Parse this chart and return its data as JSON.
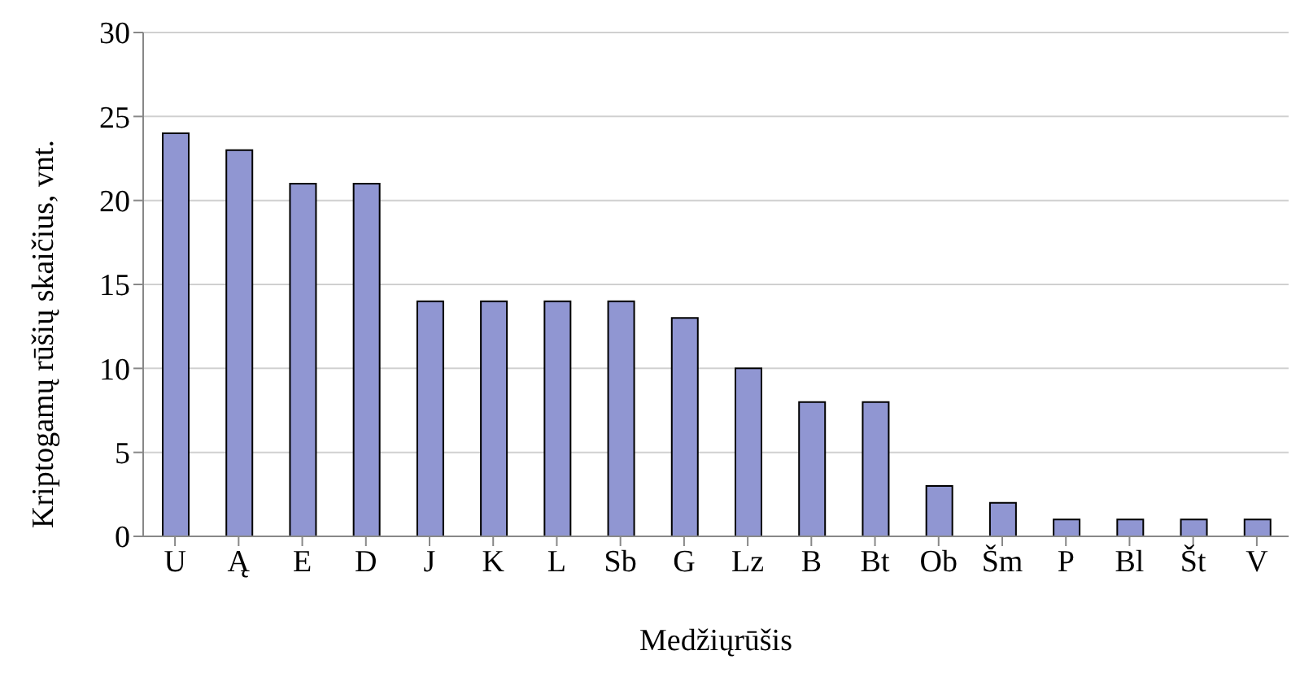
{
  "chart_data": {
    "type": "bar",
    "xlabel": "Medžiųrūšis",
    "ylabel": "Kriptogamų rūšių skaičius, vnt.",
    "categories": [
      "U",
      "Ą",
      "E",
      "D",
      "J",
      "K",
      "L",
      "Sb",
      "G",
      "Lz",
      "B",
      "Bt",
      "Ob",
      "Šm",
      "P",
      "Bl",
      "Št",
      "V"
    ],
    "values": [
      24,
      23,
      21,
      21,
      14,
      14,
      14,
      14,
      13,
      10,
      8,
      8,
      3,
      2,
      1,
      1,
      1,
      1
    ],
    "color": "#9096d2",
    "ylim": [
      0,
      30
    ],
    "yticks": [
      0,
      5,
      10,
      15,
      20,
      25,
      30
    ],
    "grid": "y",
    "legend": false
  }
}
